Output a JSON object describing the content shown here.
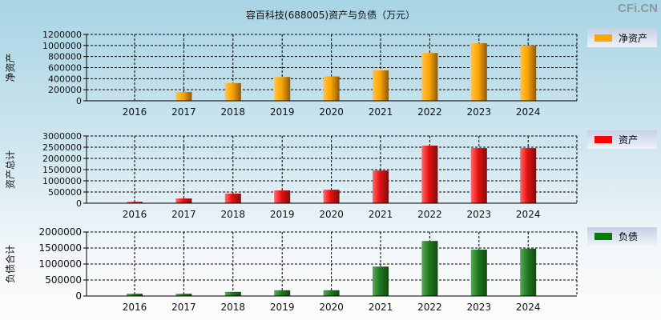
{
  "title": "容百科技(688005)资产与负债（万元）",
  "watermark": "CFi.CN",
  "chart_data": [
    {
      "type": "bar",
      "ylabel": "净资产",
      "legend": "净资产",
      "color": "#ffa500",
      "ylim": [
        0,
        1200000
      ],
      "yticks": [
        0,
        200000,
        400000,
        600000,
        800000,
        1000000,
        1200000
      ],
      "categories": [
        "2016",
        "2017",
        "2018",
        "2019",
        "2020",
        "2021",
        "2022",
        "2023",
        "2024"
      ],
      "values": [
        10000,
        160000,
        320000,
        430000,
        440000,
        550000,
        865000,
        1040000,
        1000000
      ],
      "grid": true,
      "legend_position": "right"
    },
    {
      "type": "bar",
      "ylabel": "资产总计",
      "legend": "资产",
      "color": "#ff0000",
      "ylim": [
        0,
        3000000
      ],
      "yticks": [
        0,
        500000,
        1000000,
        1500000,
        2000000,
        2500000,
        3000000
      ],
      "categories": [
        "2016",
        "2017",
        "2018",
        "2019",
        "2020",
        "2021",
        "2022",
        "2023",
        "2024"
      ],
      "values": [
        60000,
        210000,
        430000,
        570000,
        600000,
        1460000,
        2570000,
        2460000,
        2460000
      ],
      "grid": true,
      "legend_position": "right"
    },
    {
      "type": "bar",
      "ylabel": "负债合计",
      "legend": "负债",
      "color": "#008000",
      "ylim": [
        0,
        2000000
      ],
      "yticks": [
        0,
        500000,
        1000000,
        1500000,
        2000000
      ],
      "categories": [
        "2016",
        "2017",
        "2018",
        "2019",
        "2020",
        "2021",
        "2022",
        "2023",
        "2024"
      ],
      "values": [
        70000,
        70000,
        130000,
        180000,
        180000,
        920000,
        1720000,
        1450000,
        1480000
      ],
      "grid": true,
      "legend_position": "right"
    }
  ]
}
